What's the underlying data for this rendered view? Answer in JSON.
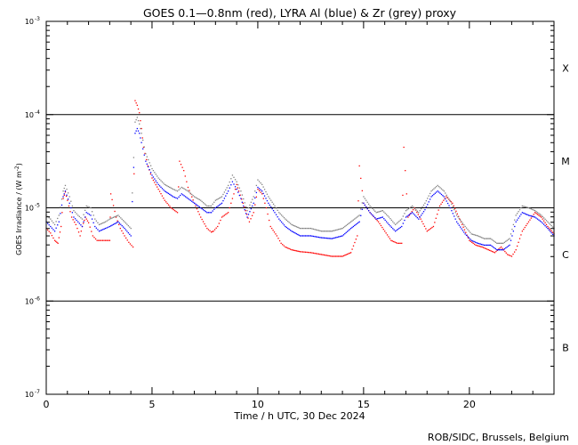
{
  "chart_data": {
    "type": "scatter",
    "title": "GOES 0.1—0.8nm (red), LYRA Al (blue) & Zr (grey) proxy",
    "xlabel": "Time / h UTC, 30 Dec 2024",
    "ylabel_prefix": "GOES Irradiance / (W m",
    "ylabel_exp": "-2",
    "ylabel_suffix": ")",
    "credit": "ROB/SIDC, Brussels, Belgium",
    "xlim": [
      0,
      24
    ],
    "ylim_log10": [
      -7,
      -3
    ],
    "yscale": "log",
    "x_ticks": [
      0,
      5,
      10,
      15,
      20
    ],
    "x_tick_labels": [
      "0",
      "5",
      "10",
      "15",
      "20"
    ],
    "y_ticks_log10": [
      -7,
      -6,
      -5,
      -4,
      -3
    ],
    "y_tick_mantissa": [
      "10",
      "10",
      "10",
      "10",
      "10"
    ],
    "y_tick_exp": [
      "-7",
      "-6",
      "-5",
      "-4",
      "-3"
    ],
    "flare_lines_log10": [
      -6,
      -5,
      -4
    ],
    "flare_classes": [
      {
        "label": "X",
        "log10": -3.5
      },
      {
        "label": "M",
        "log10": -4.5
      },
      {
        "label": "C",
        "log10": -5.5
      },
      {
        "label": "B",
        "log10": -6.5
      }
    ],
    "series": [
      {
        "name": "GOES 0.1-0.8nm",
        "color": "#ff0000",
        "x": [
          0.0,
          0.2,
          0.4,
          0.55,
          0.7,
          0.8,
          0.9,
          1.0,
          1.2,
          1.4,
          1.6,
          1.7,
          1.85,
          2.0,
          2.2,
          2.4,
          2.6,
          2.8,
          3.0,
          3.05,
          3.3,
          3.5,
          3.7,
          3.9,
          4.1,
          4.2,
          4.3,
          4.4,
          4.5,
          4.6,
          4.8,
          5.0,
          5.3,
          5.6,
          5.9,
          6.2,
          6.3,
          6.5,
          6.7,
          7.0,
          7.3,
          7.6,
          7.8,
          7.9,
          8.1,
          8.3,
          8.6,
          8.8,
          9.0,
          9.1,
          9.3,
          9.6,
          9.8,
          10.0,
          10.2,
          10.4,
          10.6,
          10.9,
          11.1,
          11.3,
          11.6,
          12.0,
          12.5,
          13.0,
          13.5,
          14.0,
          14.4,
          14.7,
          14.8,
          15.0,
          15.3,
          15.7,
          16.0,
          16.3,
          16.6,
          16.8,
          16.9,
          17.1,
          17.4,
          17.7,
          18.0,
          18.3,
          18.6,
          18.9,
          19.2,
          19.6,
          20.0,
          20.3,
          20.6,
          20.9,
          21.2,
          21.5,
          21.8,
          22.0,
          22.2,
          22.5,
          22.8,
          23.1,
          23.4,
          23.7,
          24.0
        ],
        "log10": [
          -5.22,
          -5.27,
          -5.35,
          -5.38,
          -5.2,
          -4.9,
          -4.83,
          -4.92,
          -5.1,
          -5.18,
          -5.3,
          -5.2,
          -5.1,
          -5.16,
          -5.3,
          -5.35,
          -5.35,
          -5.35,
          -5.35,
          -4.85,
          -5.1,
          -5.22,
          -5.3,
          -5.37,
          -5.42,
          -3.85,
          -3.9,
          -3.98,
          -4.15,
          -4.35,
          -4.55,
          -4.68,
          -4.8,
          -4.92,
          -5.0,
          -5.05,
          -4.5,
          -4.6,
          -4.78,
          -4.95,
          -5.1,
          -5.22,
          -5.26,
          -5.25,
          -5.2,
          -5.1,
          -5.05,
          -4.9,
          -4.75,
          -4.82,
          -4.95,
          -5.15,
          -5.05,
          -4.8,
          -4.85,
          -5.0,
          -5.2,
          -5.3,
          -5.38,
          -5.42,
          -5.45,
          -5.47,
          -5.48,
          -5.5,
          -5.52,
          -5.52,
          -5.48,
          -5.3,
          -4.55,
          -4.95,
          -5.05,
          -5.15,
          -5.25,
          -5.35,
          -5.38,
          -5.38,
          -4.35,
          -5.1,
          -5.0,
          -5.12,
          -5.25,
          -5.2,
          -4.98,
          -4.88,
          -4.95,
          -5.15,
          -5.35,
          -5.4,
          -5.42,
          -5.45,
          -5.48,
          -5.42,
          -5.5,
          -5.52,
          -5.45,
          -5.25,
          -5.15,
          -5.05,
          -5.1,
          -5.2,
          -5.28
        ]
      },
      {
        "name": "LYRA Al proxy",
        "color": "#0000ff",
        "x": [
          0.0,
          0.2,
          0.4,
          0.6,
          0.8,
          0.9,
          1.1,
          1.3,
          1.5,
          1.7,
          1.9,
          2.1,
          2.3,
          2.5,
          2.8,
          3.0,
          3.4,
          3.7,
          4.0,
          4.2,
          4.3,
          4.4,
          4.5,
          4.7,
          5.0,
          5.3,
          5.6,
          6.0,
          6.2,
          6.4,
          6.7,
          7.0,
          7.3,
          7.6,
          7.8,
          8.0,
          8.3,
          8.6,
          8.8,
          9.0,
          9.2,
          9.5,
          9.8,
          10.0,
          10.2,
          10.5,
          10.8,
          11.0,
          11.3,
          11.6,
          12.0,
          12.5,
          13.0,
          13.5,
          14.0,
          14.4,
          14.8,
          15.0,
          15.3,
          15.6,
          15.9,
          16.2,
          16.5,
          16.8,
          17.0,
          17.3,
          17.6,
          17.9,
          18.2,
          18.5,
          18.8,
          19.1,
          19.4,
          19.8,
          20.1,
          20.4,
          20.7,
          21.0,
          21.3,
          21.6,
          21.9,
          22.2,
          22.5,
          22.8,
          23.1,
          23.4,
          23.7,
          24.0
        ],
        "log10": [
          -5.15,
          -5.2,
          -5.25,
          -5.15,
          -4.88,
          -4.82,
          -4.95,
          -5.1,
          -5.15,
          -5.2,
          -5.05,
          -5.08,
          -5.2,
          -5.25,
          -5.22,
          -5.2,
          -5.15,
          -5.22,
          -5.3,
          -4.2,
          -4.15,
          -4.2,
          -4.3,
          -4.5,
          -4.65,
          -4.75,
          -4.82,
          -4.88,
          -4.9,
          -4.85,
          -4.9,
          -4.95,
          -5.0,
          -5.05,
          -5.05,
          -5.0,
          -4.95,
          -4.82,
          -4.72,
          -4.8,
          -4.9,
          -5.1,
          -4.95,
          -4.78,
          -4.82,
          -4.95,
          -5.05,
          -5.12,
          -5.2,
          -5.25,
          -5.3,
          -5.3,
          -5.32,
          -5.33,
          -5.3,
          -5.22,
          -5.15,
          -4.95,
          -5.05,
          -5.12,
          -5.1,
          -5.18,
          -5.25,
          -5.2,
          -5.1,
          -5.05,
          -5.12,
          -5.02,
          -4.88,
          -4.82,
          -4.88,
          -5.0,
          -5.15,
          -5.28,
          -5.35,
          -5.38,
          -5.4,
          -5.4,
          -5.45,
          -5.45,
          -5.4,
          -5.15,
          -5.05,
          -5.08,
          -5.1,
          -5.15,
          -5.22,
          -5.3
        ]
      },
      {
        "name": "LYRA Zr proxy",
        "color": "#808080",
        "x": [
          0.0,
          0.2,
          0.4,
          0.6,
          0.8,
          0.9,
          1.1,
          1.3,
          1.5,
          1.7,
          1.9,
          2.1,
          2.3,
          2.5,
          2.8,
          3.0,
          3.4,
          3.7,
          4.0,
          4.2,
          4.3,
          4.4,
          4.5,
          4.7,
          5.0,
          5.3,
          5.6,
          6.0,
          6.2,
          6.4,
          6.7,
          7.0,
          7.3,
          7.6,
          7.8,
          8.0,
          8.3,
          8.6,
          8.8,
          9.0,
          9.2,
          9.5,
          9.8,
          10.0,
          10.2,
          10.5,
          10.8,
          11.0,
          11.3,
          11.6,
          12.0,
          12.5,
          13.0,
          13.5,
          14.0,
          14.4,
          14.8,
          15.0,
          15.3,
          15.6,
          15.9,
          16.2,
          16.5,
          16.8,
          17.0,
          17.3,
          17.6,
          17.9,
          18.2,
          18.5,
          18.8,
          19.1,
          19.4,
          19.8,
          20.1,
          20.4,
          20.7,
          21.0,
          21.3,
          21.6,
          21.9,
          22.2,
          22.5,
          22.8,
          23.1,
          23.4,
          23.7,
          24.0
        ],
        "log10": [
          -5.08,
          -5.12,
          -5.18,
          -5.08,
          -4.82,
          -4.76,
          -4.88,
          -5.03,
          -5.08,
          -5.12,
          -4.98,
          -5.0,
          -5.12,
          -5.18,
          -5.15,
          -5.12,
          -5.08,
          -5.15,
          -5.22,
          -4.08,
          -4.03,
          -4.1,
          -4.2,
          -4.42,
          -4.58,
          -4.68,
          -4.75,
          -4.8,
          -4.82,
          -4.78,
          -4.82,
          -4.88,
          -4.92,
          -4.98,
          -4.98,
          -4.92,
          -4.88,
          -4.76,
          -4.65,
          -4.72,
          -4.82,
          -5.03,
          -4.88,
          -4.7,
          -4.75,
          -4.88,
          -4.98,
          -5.05,
          -5.12,
          -5.18,
          -5.22,
          -5.22,
          -5.25,
          -5.25,
          -5.22,
          -5.15,
          -5.08,
          -4.88,
          -4.98,
          -5.05,
          -5.03,
          -5.1,
          -5.18,
          -5.12,
          -5.03,
          -4.98,
          -5.05,
          -4.95,
          -4.82,
          -4.76,
          -4.82,
          -4.93,
          -5.08,
          -5.2,
          -5.28,
          -5.3,
          -5.33,
          -5.33,
          -5.38,
          -5.38,
          -5.33,
          -5.08,
          -4.98,
          -5.0,
          -5.03,
          -5.08,
          -5.15,
          -5.22
        ]
      }
    ]
  }
}
